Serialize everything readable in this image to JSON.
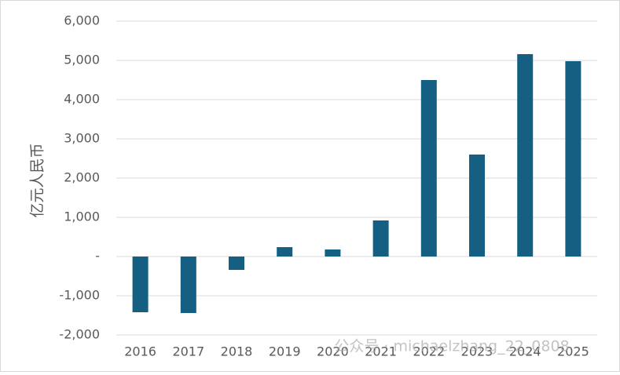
{
  "chart_data": {
    "type": "bar",
    "y_label": "亿元人民币",
    "categories": [
      "2016",
      "2017",
      "2018",
      "2019",
      "2020",
      "2021",
      "2022",
      "2023",
      "2024",
      "2025"
    ],
    "values": [
      -1420,
      -1440,
      -340,
      240,
      180,
      920,
      4500,
      2600,
      5160,
      4980
    ],
    "color": "#156082",
    "ylim": [
      -2000,
      6000
    ],
    "yticks": [
      {
        "value": -2000,
        "label": "-2,000"
      },
      {
        "value": -1000,
        "label": "-1,000"
      },
      {
        "value": 0,
        "label": "-"
      },
      {
        "value": 1000,
        "label": "1,000"
      },
      {
        "value": 2000,
        "label": "2,000"
      },
      {
        "value": 3000,
        "label": "3,000"
      },
      {
        "value": 4000,
        "label": "4,000"
      },
      {
        "value": 5000,
        "label": "5,000"
      },
      {
        "value": 6000,
        "label": "6,000"
      }
    ],
    "grid": true,
    "watermark": "公众号 · michaelzhang_22_0808"
  }
}
